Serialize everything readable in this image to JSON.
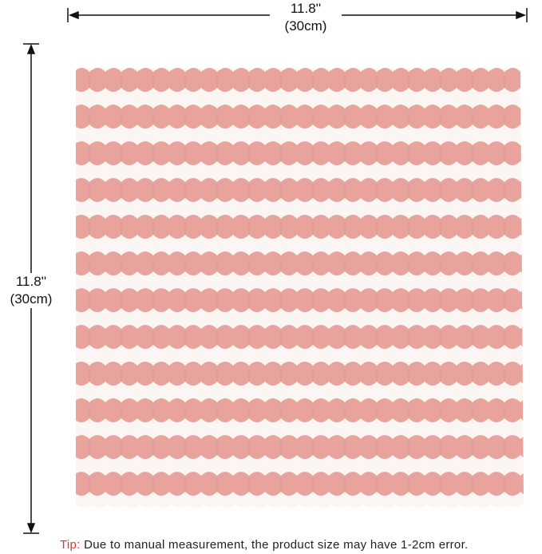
{
  "width_label": {
    "inches": "11.8''",
    "cm": "(30cm)"
  },
  "height_label": {
    "inches": "11.8''",
    "cm": "(30cm)"
  },
  "tip": {
    "prefix": "Tip:",
    "text": "Due to manual measurement, the product size may have 1-2cm error."
  }
}
